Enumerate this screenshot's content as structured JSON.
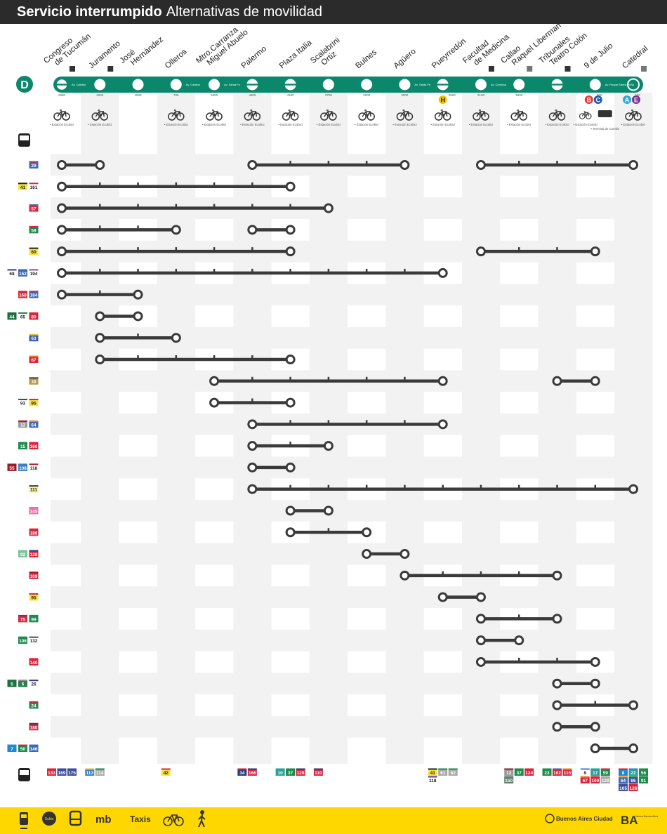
{
  "header": {
    "title_bold": "Servicio interrumpido",
    "title_regular": "Alternativas de movilidad"
  },
  "line": {
    "name": "D",
    "color": "#0b876c"
  },
  "bike_label": "• Estación Ecobici",
  "combi_label": "• Terminal de Combis",
  "stations": [
    {
      "name": [
        "Congreso",
        "de Tucumán"
      ],
      "num": "2800",
      "type": "terminal",
      "access": "wheelchair",
      "bike": true,
      "street": "Av. Cabildo"
    },
    {
      "name": [
        "Juramento"
      ],
      "num": "2000",
      "type": "plain",
      "access": "wheelchair",
      "bike": true
    },
    {
      "name": [
        "José",
        "Hernández"
      ],
      "num": "1600",
      "type": "plain",
      "bike": false
    },
    {
      "name": [
        "Olleros"
      ],
      "num": "700",
      "type": "plain",
      "bike": true,
      "street": "Av. Cabildo"
    },
    {
      "name": [
        "Mtro.Carranza",
        "Miguel Abuelo"
      ],
      "num": "5300",
      "type": "plain",
      "bike": true,
      "street": "Av. Santa Fe"
    },
    {
      "name": [
        "Palermo"
      ],
      "num": "4600",
      "type": "transfer",
      "bike": true
    },
    {
      "name": [
        "Plaza Italia"
      ],
      "num": "4100",
      "type": "transfer",
      "bike": true
    },
    {
      "name": [
        "Scalabrini",
        "Ortiz"
      ],
      "num": "3700",
      "type": "plain",
      "bike": true
    },
    {
      "name": [
        "Bulnes"
      ],
      "num": "3200",
      "type": "plain",
      "bike": true
    },
    {
      "name": [
        "Agüero"
      ],
      "num": "2900",
      "type": "plain",
      "bike": true,
      "street": "Av. Santa Fe"
    },
    {
      "name": [
        "Pueyrredón"
      ],
      "num": "2500",
      "type": "transfer",
      "bike": true,
      "lines": [
        {
          "l": "H",
          "c": "#f2c500",
          "fg": "#222"
        }
      ]
    },
    {
      "name": [
        "Facultad",
        "de Medicina"
      ],
      "num": "2100",
      "type": "plain",
      "access": "wheelchair",
      "bike": true,
      "street": "Av. Córdoba"
    },
    {
      "name": [
        "Callao",
        "Raquel Liberman"
      ],
      "num": "1800",
      "type": "plain",
      "access": "elevator",
      "bike": true
    },
    {
      "name": [
        "Tribunales",
        "Teatro Colón"
      ],
      "num": "",
      "type": "transfer",
      "access": "wheelchair",
      "bike": true
    },
    {
      "name": [
        "9 de Julio"
      ],
      "num": "900",
      "type": "plain",
      "bike": true,
      "combi": true,
      "street": "Av. Roque Sáenz Peña",
      "lines": [
        {
          "l": "B",
          "c": "#e53935",
          "fg": "#fff"
        },
        {
          "l": "C",
          "c": "#1e5cb3",
          "fg": "#fff"
        }
      ]
    },
    {
      "name": [
        "Catedral"
      ],
      "num": "500",
      "type": "ring",
      "access": "elevator",
      "bike": true,
      "lines": [
        {
          "l": "A",
          "c": "#29a8e0",
          "fg": "#fff"
        },
        {
          "l": "E",
          "c": "#7b2f8e",
          "fg": "#fff"
        }
      ]
    }
  ],
  "routes": [
    {
      "b": [
        [
          "29",
          "#3d6bb3",
          "#d7263d"
        ]
      ],
      "seg": [
        [
          0,
          1
        ],
        [
          5,
          9
        ],
        [
          11,
          15
        ]
      ]
    },
    {
      "b": [
        [
          "41",
          "#f5e342",
          "#222"
        ],
        [
          "161",
          "#fff",
          "#d7263d"
        ]
      ],
      "seg": [
        [
          0,
          6
        ]
      ]
    },
    {
      "b": [
        [
          "57",
          "#d7263d",
          "#3d6bb3"
        ]
      ],
      "seg": [
        [
          0,
          7
        ]
      ]
    },
    {
      "b": [
        [
          "59",
          "#1f8a4c",
          "#d7263d"
        ]
      ],
      "seg": [
        [
          0,
          3
        ],
        [
          5,
          6
        ]
      ]
    },
    {
      "b": [
        [
          "60",
          "#f5e342",
          "#222"
        ]
      ],
      "seg": [
        [
          0,
          6
        ],
        [
          11,
          14
        ]
      ]
    },
    {
      "b": [
        [
          "68",
          "#fff",
          "#2f3d7a"
        ],
        [
          "152",
          "#3d6bb3",
          "#3d6bb3"
        ],
        [
          "194",
          "#fff",
          "#8a4c9a"
        ]
      ],
      "seg": [
        [
          0,
          10
        ]
      ]
    },
    {
      "b": [
        [
          "168",
          "#d7263d",
          "#d7263d"
        ],
        [
          "184",
          "#3d6bb3",
          "#d7263d"
        ]
      ],
      "seg": [
        [
          0,
          2
        ]
      ]
    },
    {
      "b": [
        [
          "44",
          "#1f6f45",
          "#1f6f45"
        ],
        [
          "65",
          "#fff",
          "#1f8a4c"
        ],
        [
          "80",
          "#d7263d",
          "#d7263d"
        ]
      ],
      "seg": [
        [
          1,
          2
        ]
      ]
    },
    {
      "b": [
        [
          "63",
          "#3d5fa8",
          "#e8c23a"
        ]
      ],
      "seg": [
        [
          1,
          3
        ]
      ]
    },
    {
      "b": [
        [
          "67",
          "#d7263d",
          "#f08a24"
        ]
      ],
      "seg": [
        [
          1,
          6
        ]
      ]
    },
    {
      "b": [
        [
          "39",
          "#b5964a",
          "#444"
        ]
      ],
      "seg": [
        [
          4,
          10
        ],
        [
          13,
          14
        ]
      ]
    },
    {
      "b": [
        [
          "93",
          "#fff",
          "#1f5c3a"
        ],
        [
          "95",
          "#f5e342",
          "#d7263d"
        ]
      ],
      "seg": [
        [
          4,
          6
        ]
      ]
    },
    {
      "b": [
        [
          "12",
          "#999",
          "#9b1c2a"
        ],
        [
          "64",
          "#3d6bb3",
          "#f08a24"
        ]
      ],
      "seg": [
        [
          5,
          10
        ]
      ]
    },
    {
      "b": [
        [
          "15",
          "#1f8a4c",
          "#1f8a4c"
        ],
        [
          "160",
          "#d7263d",
          "#d7263d"
        ]
      ],
      "seg": [
        [
          5,
          7
        ]
      ]
    },
    {
      "b": [
        [
          "55",
          "#9b1c2a",
          "#9b1c2a"
        ],
        [
          "108",
          "#3d7fc4",
          "#3d7fc4"
        ],
        [
          "118",
          "#fff",
          "#9b1c2a"
        ]
      ],
      "seg": [
        [
          5,
          6
        ]
      ]
    },
    {
      "b": [
        [
          "111",
          "#f8f0a0",
          "#333"
        ]
      ],
      "seg": [
        [
          5,
          15
        ]
      ]
    },
    {
      "b": [
        [
          "145",
          "#ec6fa6",
          "#ec6fa6"
        ]
      ],
      "seg": [
        [
          6,
          7
        ]
      ]
    },
    {
      "b": [
        [
          "188",
          "#d7263d",
          "#d7263d"
        ]
      ],
      "seg": [
        [
          6,
          8
        ]
      ]
    },
    {
      "b": [
        [
          "92",
          "#7cc49a",
          "#7cc49a"
        ],
        [
          "128",
          "#d7263d",
          "#2f3d7a"
        ]
      ],
      "seg": [
        [
          8,
          9
        ]
      ]
    },
    {
      "b": [
        [
          "109",
          "#d7263d",
          "#9b1c2a"
        ]
      ],
      "seg": [
        [
          9,
          13
        ]
      ]
    },
    {
      "b": [
        [
          "95",
          "#f5e342",
          "#d7263d"
        ]
      ],
      "seg": [
        [
          10,
          11
        ]
      ]
    },
    {
      "b": [
        [
          "75",
          "#d7263d",
          "#5b3a8a"
        ],
        [
          "99",
          "#1f8a4c",
          "#1f8a4c"
        ]
      ],
      "seg": [
        [
          11,
          13
        ]
      ]
    },
    {
      "b": [
        [
          "106",
          "#1f8a4c",
          "#1f8a4c"
        ],
        [
          "132",
          "#fff",
          "#4a4a6a"
        ]
      ],
      "seg": [
        [
          11,
          12
        ]
      ]
    },
    {
      "b": [
        [
          "140",
          "#d7263d",
          "#d7263d"
        ]
      ],
      "seg": [
        [
          11,
          14
        ]
      ]
    },
    {
      "b": [
        [
          "5",
          "#1f6f45",
          "#1f6f45"
        ],
        [
          "6",
          "#2f7a4c",
          "#888"
        ],
        [
          "26",
          "#fff",
          "#2f3d7a"
        ]
      ],
      "seg": [
        [
          13,
          14
        ]
      ]
    },
    {
      "b": [
        [
          "24",
          "#1f8a4c",
          "#d7263d"
        ]
      ],
      "seg": [
        [
          13,
          15
        ]
      ]
    },
    {
      "b": [
        [
          "180",
          "#d7263d",
          "#2f3d7a"
        ]
      ],
      "seg": [
        [
          13,
          14
        ]
      ]
    },
    {
      "b": [
        [
          "7",
          "#1e88d0",
          "#1e88d0"
        ],
        [
          "50",
          "#1f8a4c",
          "#d7263d"
        ],
        [
          "146",
          "#3d6bb3",
          "#3d6bb3"
        ]
      ],
      "seg": [
        [
          14,
          15
        ]
      ]
    }
  ],
  "bottom_buses": [
    {
      "col": 0,
      "rows": [
        [
          [
            "133",
            "#d7263d",
            "#d7263d"
          ],
          [
            "169",
            "#3d4f9a",
            "#3d4f9a"
          ],
          [
            "175",
            "#3d4f9a",
            "#3d4f9a"
          ]
        ]
      ]
    },
    {
      "col": 1,
      "rows": [
        [
          [
            "113",
            "#3d7fc4",
            "#e8c23a"
          ],
          [
            "114",
            "#aaa",
            "#1f8a4c"
          ]
        ]
      ]
    },
    {
      "col": 3,
      "rows": [
        [
          [
            "42",
            "#f5e342",
            "#d7263d"
          ]
        ]
      ]
    },
    {
      "col": 5,
      "rows": [
        [
          [
            "34",
            "#2f3d7a",
            "#d7263d"
          ],
          [
            "166",
            "#d7263d",
            "#2f3d7a"
          ]
        ]
      ]
    },
    {
      "col": 6,
      "rows": [
        [
          [
            "10",
            "#2aa198",
            "#2aa198"
          ],
          [
            "37",
            "#1f8a4c",
            "#1f8a4c"
          ],
          [
            "128",
            "#d7263d",
            "#2f3d7a"
          ]
        ]
      ]
    },
    {
      "col": 7,
      "rows": [
        [
          [
            "110",
            "#d7263d",
            "#2f3d7a"
          ]
        ]
      ]
    },
    {
      "col": 10,
      "rows": [
        [
          [
            "41",
            "#f5e342",
            "#222"
          ],
          [
            "61",
            "#aaa",
            "#1f8a4c"
          ],
          [
            "62",
            "#aaa",
            "#1f8a4c"
          ]
        ],
        [
          [
            "118",
            "#fff",
            "#5b3a8a"
          ]
        ]
      ]
    },
    {
      "col": 12,
      "rows": [
        [
          [
            "12",
            "#999",
            "#9b1c2a"
          ],
          [
            "37",
            "#1f8a4c",
            "#1f8a4c"
          ],
          [
            "124",
            "#d7263d",
            "#d7263d"
          ]
        ],
        [
          [
            "150",
            "#5f7f6f",
            "#5f7f6f"
          ]
        ]
      ]
    },
    {
      "col": 13,
      "rows": [
        [
          [
            "23",
            "#1f8a4c",
            "#1f8a4c"
          ],
          [
            "102",
            "#d7263d",
            "#3d6bb3"
          ],
          [
            "115",
            "#d7263d",
            "#f08a24"
          ]
        ]
      ]
    },
    {
      "col": 14,
      "rows": [
        [
          [
            "9",
            "#fff",
            "#3d7fc4"
          ],
          [
            "17",
            "#2aa198",
            "#2aa198"
          ],
          [
            "59",
            "#1f8a4c",
            "#d7263d"
          ]
        ],
        [
          [
            "67",
            "#d7263d",
            "#f08a24"
          ],
          [
            "100",
            "#d7263d",
            "#d7263d"
          ],
          [
            "129",
            "#aaa",
            "#aaa"
          ]
        ]
      ]
    },
    {
      "col": 15,
      "rows": [
        [
          [
            "8",
            "#1e88d0",
            "#d7263d"
          ],
          [
            "22",
            "#2aa198",
            "#3d7fc4"
          ],
          [
            "56",
            "#1f8a4c",
            "#1f8a4c"
          ]
        ],
        [
          [
            "64",
            "#3d6bb3",
            "#f08a24"
          ],
          [
            "86",
            "#3d4f9a",
            "#1f8a4c"
          ],
          [
            "91",
            "#1f8a4c",
            "#1f8a4c"
          ]
        ],
        [
          [
            "105",
            "#3d4f9a",
            "#3d4f9a"
          ],
          [
            "126",
            "#d7263d",
            "#d7263d"
          ]
        ]
      ]
    }
  ],
  "footer": {
    "items": [
      "train",
      "subte",
      "bus",
      "ecobici",
      "taxis",
      "bike",
      "walk"
    ],
    "subte_label": "Subte",
    "mob_label": "mb",
    "taxis_label": "Taxis",
    "city_label": "Buenos Aires Ciudad",
    "ba_label": "BA",
    "vamos_label": "Vamos Buenos Aires"
  }
}
